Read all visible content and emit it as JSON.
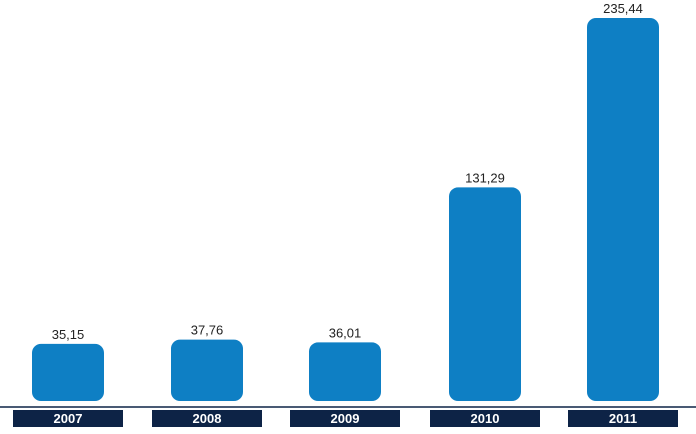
{
  "chart_data": {
    "type": "bar",
    "categories": [
      "2007",
      "2008",
      "2009",
      "2010",
      "2011"
    ],
    "values": [
      35.15,
      37.76,
      36.01,
      131.29,
      235.44
    ],
    "value_labels": [
      "35,15",
      "37,76",
      "36,01",
      "131,29",
      "235,44"
    ],
    "title": "",
    "xlabel": "",
    "ylabel": "",
    "ylim": [
      0,
      240
    ],
    "grid": false,
    "legend": "none",
    "colors": {
      "bar": "#0e7fc4",
      "category_label_bg": "#0d2346",
      "category_label_text": "#ffffff"
    }
  }
}
